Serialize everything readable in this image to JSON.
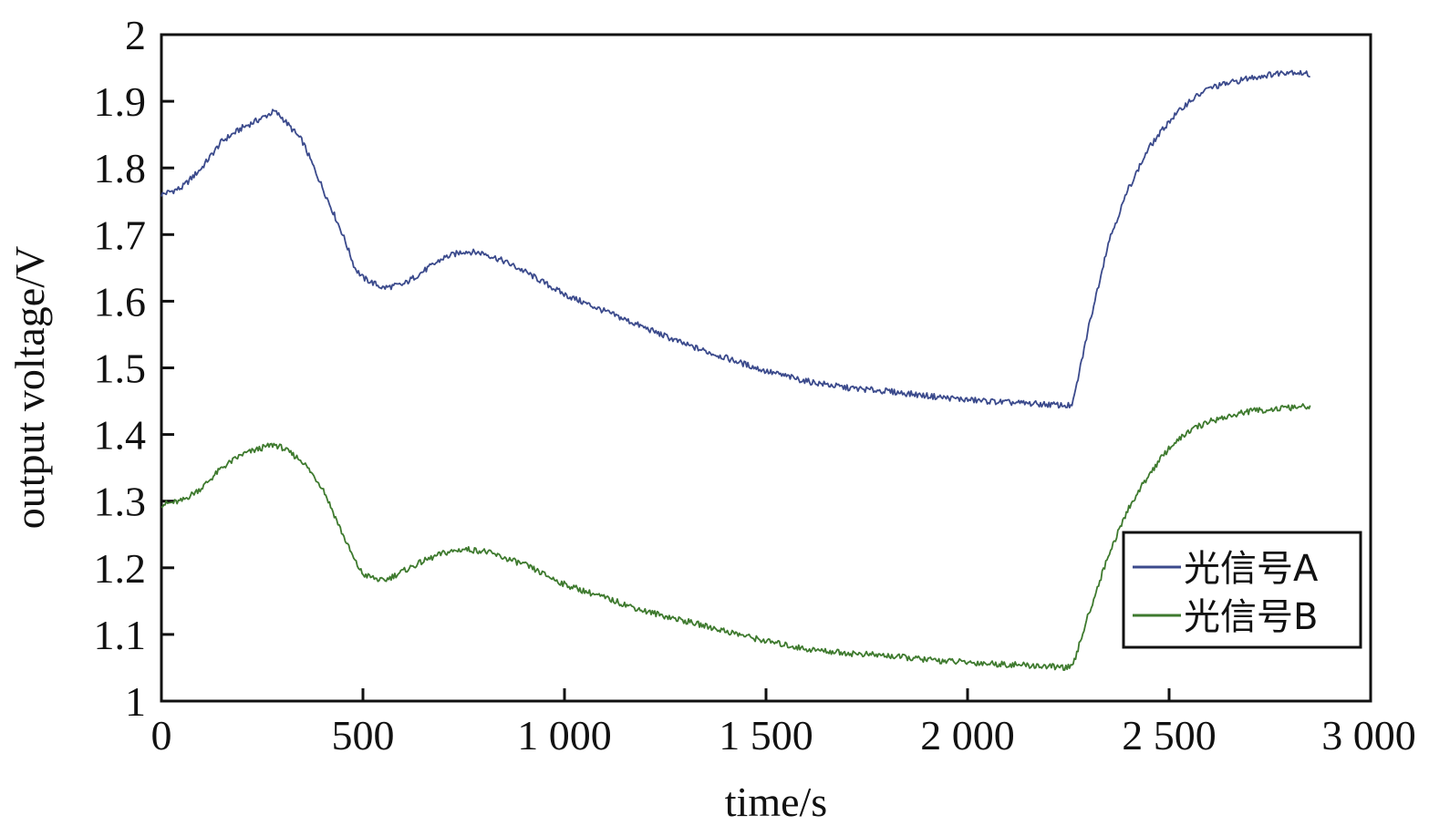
{
  "chart_data": {
    "type": "line",
    "title": "",
    "xlabel": "time/s",
    "ylabel": "output voltage/V",
    "xlim": [
      0,
      3000
    ],
    "ylim": [
      1,
      2
    ],
    "x_ticks": [
      0,
      500,
      1000,
      1500,
      2000,
      2500,
      3000
    ],
    "x_tick_labels": [
      "0",
      "500",
      "1 000",
      "1 500",
      "2 000",
      "2 500",
      "3 000"
    ],
    "y_ticks": [
      1,
      1.1,
      1.2,
      1.3,
      1.4,
      1.5,
      1.6,
      1.7,
      1.8,
      1.9,
      2
    ],
    "y_tick_labels": [
      "1",
      "1.1",
      "1.2",
      "1.3",
      "1.4",
      "1.5",
      "1.6",
      "1.7",
      "1.8",
      "1.9",
      "2"
    ],
    "grid": false,
    "legend_position": "bottom-right",
    "series": [
      {
        "name": "光信号A",
        "color": "#3b4a8c",
        "x": [
          0,
          50,
          100,
          150,
          200,
          250,
          280,
          300,
          350,
          400,
          450,
          480,
          500,
          550,
          600,
          650,
          700,
          750,
          800,
          850,
          900,
          1000,
          1100,
          1200,
          1300,
          1400,
          1500,
          1600,
          1700,
          1800,
          1900,
          2000,
          2100,
          2200,
          2260,
          2300,
          2350,
          2400,
          2450,
          2500,
          2550,
          2600,
          2700,
          2800,
          2850
        ],
        "y": [
          1.76,
          1.77,
          1.8,
          1.84,
          1.86,
          1.875,
          1.885,
          1.875,
          1.84,
          1.77,
          1.7,
          1.65,
          1.635,
          1.62,
          1.625,
          1.645,
          1.665,
          1.675,
          1.672,
          1.66,
          1.645,
          1.61,
          1.585,
          1.56,
          1.535,
          1.515,
          1.495,
          1.48,
          1.47,
          1.465,
          1.458,
          1.452,
          1.448,
          1.445,
          1.443,
          1.56,
          1.69,
          1.77,
          1.83,
          1.87,
          1.9,
          1.92,
          1.935,
          1.945,
          1.94
        ]
      },
      {
        "name": "光信号B",
        "color": "#3e7a2e",
        "x": [
          0,
          50,
          100,
          150,
          200,
          250,
          280,
          300,
          350,
          400,
          450,
          480,
          500,
          550,
          600,
          650,
          700,
          750,
          800,
          850,
          900,
          1000,
          1100,
          1200,
          1300,
          1400,
          1500,
          1600,
          1700,
          1800,
          1900,
          2000,
          2100,
          2200,
          2260,
          2300,
          2350,
          2400,
          2450,
          2500,
          2550,
          2600,
          2700,
          2800,
          2850
        ],
        "y": [
          1.295,
          1.3,
          1.32,
          1.35,
          1.37,
          1.38,
          1.385,
          1.38,
          1.36,
          1.32,
          1.25,
          1.21,
          1.19,
          1.18,
          1.195,
          1.21,
          1.222,
          1.228,
          1.225,
          1.215,
          1.205,
          1.175,
          1.155,
          1.135,
          1.12,
          1.105,
          1.09,
          1.078,
          1.072,
          1.068,
          1.062,
          1.058,
          1.055,
          1.052,
          1.05,
          1.13,
          1.22,
          1.29,
          1.34,
          1.38,
          1.405,
          1.42,
          1.435,
          1.44,
          1.442
        ]
      }
    ]
  }
}
